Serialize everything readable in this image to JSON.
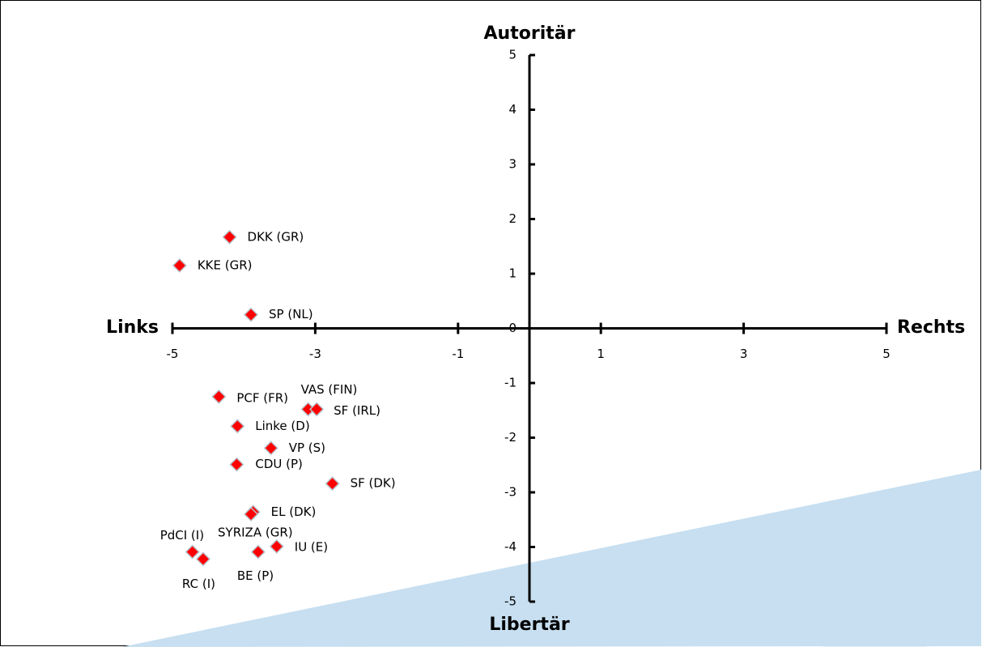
{
  "chart_data": {
    "type": "scatter",
    "x_label_left": "Links",
    "x_label_right": "Rechts",
    "y_label_top": "Autoritär",
    "y_label_bottom": "Libertär",
    "xlim": [
      -5,
      5
    ],
    "ylim": [
      -5,
      5
    ],
    "xticks": [
      -5,
      -3,
      -1,
      1,
      3,
      5
    ],
    "yticks": [
      -5,
      -4,
      -3,
      -2,
      -1,
      0,
      1,
      2,
      3,
      4,
      5
    ],
    "series": [
      {
        "color": "#ff0000",
        "labels": [
          "DKK (GR)",
          "KKE (GR)",
          "SP (NL)",
          "PCF (FR)",
          "VAS (FIN)",
          "SF (IRL)",
          "Linke (D)",
          "VP (S)",
          "CDU (P)",
          "SF (DK)",
          "EL (DK)",
          "SYRIZA (GR)",
          "PdCI (I)",
          "RC (I)",
          "BE (P)",
          "IU (E)"
        ],
        "x": [
          -4.2,
          -4.9,
          -3.9,
          -4.35,
          -3.1,
          -2.98,
          -4.09,
          -3.62,
          -4.1,
          -2.76,
          -3.87,
          -3.9,
          -4.72,
          -4.57,
          -3.8,
          -3.54
        ],
        "values": [
          1.67,
          1.15,
          0.25,
          -1.25,
          -1.48,
          -1.48,
          -1.79,
          -2.19,
          -2.49,
          -2.84,
          -3.36,
          -3.4,
          -4.09,
          -4.22,
          -4.09,
          -3.99
        ]
      }
    ]
  }
}
